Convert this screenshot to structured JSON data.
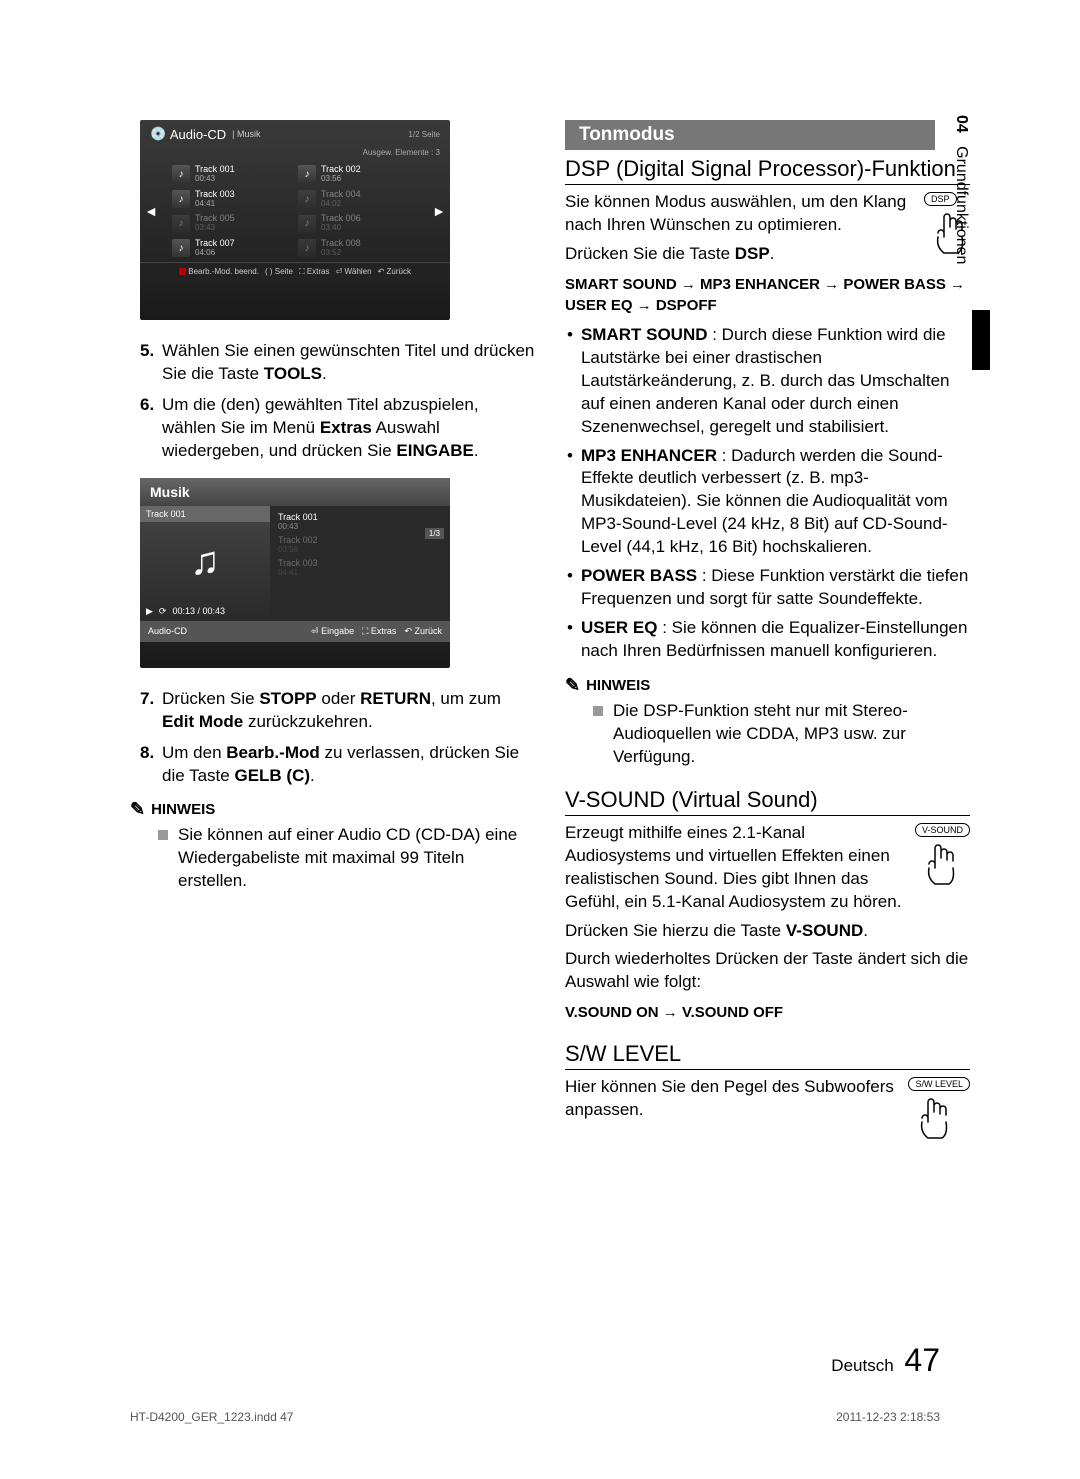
{
  "side": {
    "num": "04",
    "label": "Grundfunktionen"
  },
  "screen1": {
    "title": "Audio-CD",
    "sub": "| Musik",
    "pageInd": "1/2 Seite",
    "subheader": "Ausgew. Elemente : 3",
    "tracks": [
      {
        "name": "Track 001",
        "time": "00:43",
        "dim": false
      },
      {
        "name": "Track 002",
        "time": "03:56",
        "dim": false
      },
      {
        "name": "Track 003",
        "time": "04:41",
        "dim": false
      },
      {
        "name": "Track 004",
        "time": "04:02",
        "dim": true
      },
      {
        "name": "Track 005",
        "time": "03:43",
        "dim": true
      },
      {
        "name": "Track 006",
        "time": "03:40",
        "dim": true
      },
      {
        "name": "Track 007",
        "time": "04:06",
        "dim": false
      },
      {
        "name": "Track 008",
        "time": "03:52",
        "dim": true
      }
    ],
    "footer": [
      "Bearb.-Mod. beend.",
      "( ) Seite",
      "Extras",
      "Wählen",
      "Zurück"
    ]
  },
  "screen2": {
    "header": "Musik",
    "pageInd": "1/3",
    "leftTrack": "Track 001",
    "status": "00:13 / 00:43",
    "rightTracks": [
      {
        "name": "Track 001",
        "time": "00:43",
        "dim": false
      },
      {
        "name": "Track 002",
        "time": "03:56",
        "dim": true
      },
      {
        "name": "Track 003",
        "time": "04:41",
        "dim": true
      }
    ],
    "bottomLeft": "Audio-CD",
    "bottomRight": [
      "Eingabe",
      "Extras",
      "Zurück"
    ]
  },
  "steps": {
    "s5": {
      "num": "5.",
      "text_a": "Wählen Sie einen gewünschten Titel und drücken Sie die Taste ",
      "bold": "TOOLS",
      "text_b": "."
    },
    "s6": {
      "num": "6.",
      "text_a": "Um die (den) gewählten Titel abzuspielen, wählen Sie im Menü ",
      "bold1": "Extras",
      "text_b": " Auswahl wiedergeben, und drücken Sie ",
      "bold2": "EINGABE",
      "text_c": "."
    },
    "s7": {
      "num": "7.",
      "text_a": "Drücken Sie ",
      "bold1": "STOPP",
      "text_b": " oder ",
      "bold2": "RETURN",
      "text_c": ", um zum ",
      "bold3": "Edit Mode",
      "text_d": " zurückzukehren."
    },
    "s8": {
      "num": "8.",
      "text_a": "Um den ",
      "bold1": "Bearb.-Mod",
      "text_b": " zu verlassen, drücken Sie die Taste ",
      "bold2": "GELB (C)",
      "text_c": "."
    }
  },
  "hinweis": "HINWEIS",
  "note1": "Sie können auf einer Audio CD (CD-DA) eine Wiedergabeliste mit maximal 99 Titeln erstellen.",
  "right": {
    "sectionTitle": "Tonmodus",
    "dspTitle": "DSP (Digital Signal Processor)-Funktion",
    "dspBody1": "Sie können Modus auswählen, um den Klang nach Ihren Wünschen zu optimieren.",
    "dspBody2a": "Drücken Sie die Taste ",
    "dspBody2b": "DSP",
    "dspBody2c": ".",
    "dspBtn": "DSP",
    "chain": "SMART SOUND → MP3 ENHANCER → POWER BASS → USER EQ → DSPOFF",
    "bullets": {
      "b1a": "SMART SOUND",
      "b1b": " : Durch diese Funktion wird die Lautstärke bei einer drastischen Lautstärkeänderung, z. B. durch das Umschalten auf einen anderen Kanal oder durch einen Szenenwechsel, geregelt und stabilisiert.",
      "b2a": "MP3 ENHANCER",
      "b2b": " : Dadurch werden die Sound-Effekte deutlich verbessert (z. B. mp3-Musikdateien). Sie können die Audioqualität vom MP3-Sound-Level (24 kHz, 8 Bit) auf CD-Sound-Level (44,1 kHz, 16 Bit) hochskalieren.",
      "b3a": "POWER BASS",
      "b3b": " : Diese Funktion verstärkt die tiefen Frequenzen und sorgt für satte Soundeffekte.",
      "b4a": "USER EQ",
      "b4b": " : Sie können die Equalizer-Einstellungen nach Ihren Bedürfnissen manuell konfigurieren."
    },
    "note2": "Die DSP-Funktion steht nur mit Stereo-Audioquellen wie CDDA, MP3 usw. zur Verfügung.",
    "vsoundTitle": "V-SOUND (Virtual Sound)",
    "vsoundBody": "Erzeugt mithilfe eines 2.1-Kanal Audiosystems und virtuellen Effekten einen realistischen Sound. Dies gibt Ihnen das Gefühl, ein 5.1-Kanal Audiosystem zu hören.",
    "vsoundBtn": "V-SOUND",
    "vsoundBody2a": "Drücken Sie hierzu die Taste ",
    "vsoundBody2b": "V-SOUND",
    "vsoundBody2c": ".",
    "vsoundBody3": "Durch wiederholtes Drücken der Taste ändert sich die Auswahl wie folgt:",
    "vsoundChain": "V.SOUND ON → V.SOUND OFF",
    "swTitle": "S/W LEVEL",
    "swBody": "Hier können Sie den Pegel des Subwoofers anpassen.",
    "swBtn": "S/W LEVEL"
  },
  "footer": {
    "lang": "Deutsch",
    "num": "47"
  },
  "meta": {
    "left": "HT-D4200_GER_1223.indd   47",
    "right": "2011-12-23    2:18:53"
  }
}
